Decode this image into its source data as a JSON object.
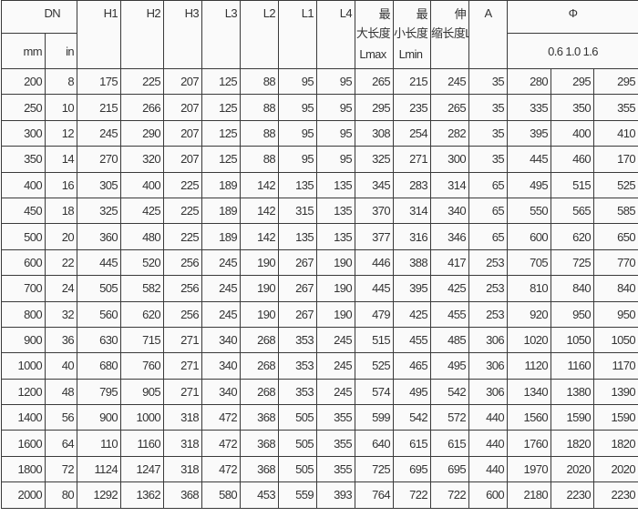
{
  "header": {
    "dn": "DN",
    "mm": "mm",
    "in": "in",
    "h1": "H1",
    "h2": "H2",
    "h3": "H3",
    "l3": "L3",
    "l2": "L2",
    "l1": "L1",
    "l4": "L4",
    "lmax": [
      "最",
      "大长度",
      "Lmax"
    ],
    "lmin": [
      "最",
      "小长度",
      "Lmin"
    ],
    "stretch": [
      "伸",
      "缩长度L"
    ],
    "a": "A",
    "phi": "Φ",
    "pressures": "0.6 1.0 1.6"
  },
  "rows": [
    [
      "200",
      "8",
      "175",
      "225",
      "207",
      "125",
      "88",
      "95",
      "95",
      "265",
      "215",
      "245",
      "35",
      "280",
      "295",
      "295"
    ],
    [
      "250",
      "10",
      "215",
      "266",
      "207",
      "125",
      "88",
      "95",
      "95",
      "295",
      "235",
      "265",
      "35",
      "335",
      "350",
      "355"
    ],
    [
      "300",
      "12",
      "245",
      "290",
      "207",
      "125",
      "88",
      "95",
      "95",
      "308",
      "254",
      "282",
      "35",
      "395",
      "400",
      "410"
    ],
    [
      "350",
      "14",
      "270",
      "320",
      "207",
      "125",
      "88",
      "95",
      "95",
      "325",
      "271",
      "300",
      "35",
      "445",
      "460",
      "170"
    ],
    [
      "400",
      "16",
      "305",
      "400",
      "225",
      "189",
      "142",
      "135",
      "135",
      "345",
      "283",
      "314",
      "65",
      "495",
      "515",
      "525"
    ],
    [
      "450",
      "18",
      "325",
      "425",
      "225",
      "189",
      "142",
      "315",
      "135",
      "370",
      "314",
      "340",
      "65",
      "550",
      "565",
      "585"
    ],
    [
      "500",
      "20",
      "360",
      "480",
      "225",
      "189",
      "142",
      "135",
      "135",
      "377",
      "316",
      "346",
      "65",
      "600",
      "620",
      "650"
    ],
    [
      "600",
      "22",
      "445",
      "520",
      "256",
      "245",
      "190",
      "267",
      "190",
      "446",
      "388",
      "417",
      "253",
      "705",
      "725",
      "770"
    ],
    [
      "700",
      "24",
      "505",
      "582",
      "256",
      "245",
      "190",
      "267",
      "190",
      "445",
      "395",
      "425",
      "253",
      "810",
      "840",
      "840"
    ],
    [
      "800",
      "32",
      "560",
      "620",
      "256",
      "245",
      "190",
      "267",
      "190",
      "479",
      "425",
      "455",
      "253",
      "920",
      "950",
      "950"
    ],
    [
      "900",
      "36",
      "630",
      "715",
      "271",
      "340",
      "268",
      "353",
      "245",
      "515",
      "455",
      "485",
      "306",
      "1020",
      "1050",
      "1050"
    ],
    [
      "1000",
      "40",
      "680",
      "760",
      "271",
      "340",
      "268",
      "353",
      "245",
      "525",
      "465",
      "495",
      "306",
      "1120",
      "1160",
      "1170"
    ],
    [
      "1200",
      "48",
      "795",
      "905",
      "271",
      "340",
      "268",
      "353",
      "245",
      "574",
      "495",
      "542",
      "306",
      "1340",
      "1380",
      "1390"
    ],
    [
      "1400",
      "56",
      "900",
      "1000",
      "318",
      "472",
      "368",
      "505",
      "355",
      "599",
      "542",
      "572",
      "440",
      "1560",
      "1590",
      "1590"
    ],
    [
      "1600",
      "64",
      "110",
      "1160",
      "318",
      "472",
      "368",
      "505",
      "355",
      "640",
      "615",
      "615",
      "440",
      "1760",
      "1820",
      "1820"
    ],
    [
      "1800",
      "72",
      "1124",
      "1247",
      "318",
      "472",
      "368",
      "505",
      "355",
      "725",
      "695",
      "695",
      "440",
      "1970",
      "2020",
      "2020"
    ],
    [
      "2000",
      "80",
      "1292",
      "1362",
      "368",
      "580",
      "453",
      "559",
      "393",
      "764",
      "722",
      "722",
      "600",
      "2180",
      "2230",
      "2230"
    ]
  ]
}
